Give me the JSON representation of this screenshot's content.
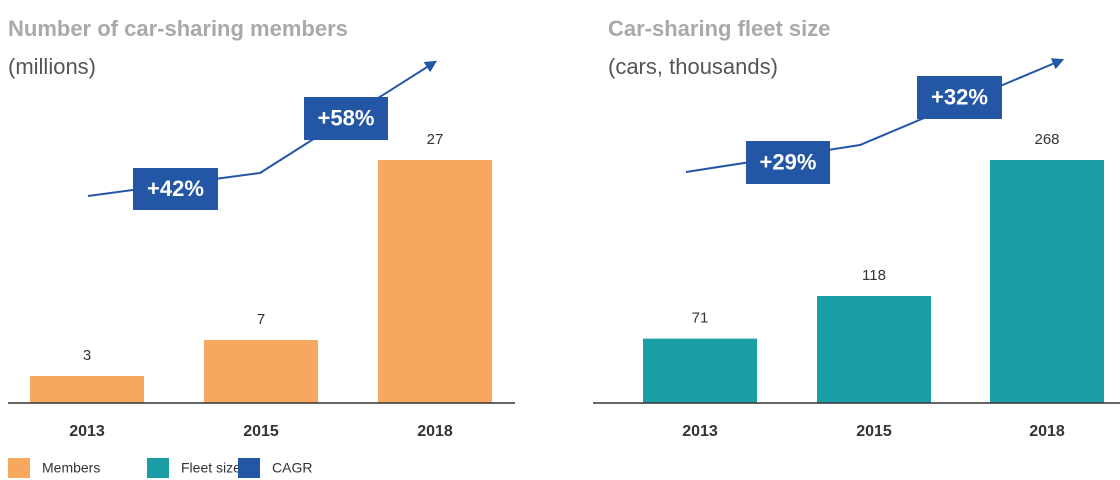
{
  "chart_data": [
    {
      "type": "bar",
      "title": "Number of car-sharing members",
      "subtitle": "(millions)",
      "categories": [
        "2013",
        "2015",
        "2018"
      ],
      "series": [
        {
          "name": "Members",
          "color": "#f7a85e",
          "values": [
            3,
            7,
            27
          ]
        }
      ],
      "annotations": [
        "+42%",
        "+58%"
      ]
    },
    {
      "type": "bar",
      "title": "Car-sharing fleet size",
      "subtitle": "(cars, thousands)",
      "categories": [
        "2013",
        "2015",
        "2018"
      ],
      "series": [
        {
          "name": "Fleet size",
          "color": "#1a9fa6",
          "values": [
            71,
            118,
            268
          ]
        }
      ],
      "annotations": [
        "+29%",
        "+32%"
      ]
    }
  ],
  "cagr": {
    "name": "CAGR",
    "color": "#2456a6"
  }
}
